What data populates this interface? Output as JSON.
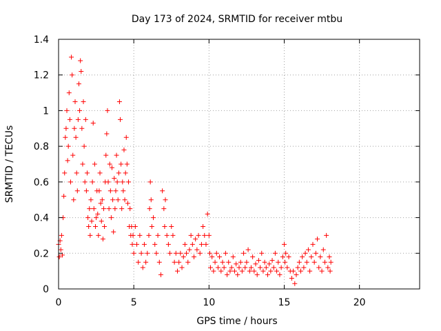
{
  "chart_data": {
    "type": "scatter",
    "title": "Day 173 of 2024, SRMTID for receiver mtbu",
    "xlabel": "GPS time / hours",
    "ylabel": "SRMTID / TECUs",
    "xlim": [
      0,
      24
    ],
    "ylim": [
      0,
      1.4
    ],
    "xticks": [
      0,
      5,
      10,
      15,
      20
    ],
    "xtick_labels": [
      "0",
      "5",
      "10",
      "15",
      "20"
    ],
    "yticks": [
      0,
      0.2,
      0.4,
      0.6,
      0.8,
      1.0,
      1.2,
      1.4
    ],
    "ytick_labels": [
      "0",
      "0.2",
      "0.4",
      "0.6",
      "0.8",
      "1",
      "1.2",
      "1.4"
    ],
    "grid": true,
    "marker": "+",
    "marker_color": "#ff0000",
    "series": [
      {
        "name": "mtbu",
        "points": [
          [
            0.0,
            0.25
          ],
          [
            0.05,
            0.18
          ],
          [
            0.1,
            0.27
          ],
          [
            0.15,
            0.22
          ],
          [
            0.2,
            0.3
          ],
          [
            0.25,
            0.19
          ],
          [
            0.3,
            0.4
          ],
          [
            0.35,
            0.52
          ],
          [
            0.4,
            0.65
          ],
          [
            0.45,
            0.85
          ],
          [
            0.5,
            0.9
          ],
          [
            0.55,
            1.0
          ],
          [
            0.6,
            0.72
          ],
          [
            0.65,
            0.8
          ],
          [
            0.7,
            1.1
          ],
          [
            0.75,
            0.95
          ],
          [
            0.8,
            0.6
          ],
          [
            0.85,
            1.3
          ],
          [
            0.9,
            1.2
          ],
          [
            0.95,
            0.75
          ],
          [
            1.0,
            0.5
          ],
          [
            1.05,
            0.9
          ],
          [
            1.1,
            1.05
          ],
          [
            1.15,
            0.85
          ],
          [
            1.2,
            0.65
          ],
          [
            1.25,
            0.55
          ],
          [
            1.3,
            0.95
          ],
          [
            1.35,
            1.15
          ],
          [
            1.4,
            1.0
          ],
          [
            1.45,
            1.28
          ],
          [
            1.5,
            1.22
          ],
          [
            1.55,
            0.9
          ],
          [
            1.6,
            0.7
          ],
          [
            1.65,
            1.05
          ],
          [
            1.7,
            0.8
          ],
          [
            1.75,
            0.6
          ],
          [
            1.8,
            0.95
          ],
          [
            1.85,
            0.55
          ],
          [
            1.9,
            0.65
          ],
          [
            1.95,
            0.4
          ],
          [
            2.0,
            0.35
          ],
          [
            2.05,
            0.45
          ],
          [
            2.1,
            0.3
          ],
          [
            2.15,
            0.5
          ],
          [
            2.2,
            0.38
          ],
          [
            2.25,
            0.6
          ],
          [
            2.3,
            0.93
          ],
          [
            2.35,
            0.45
          ],
          [
            2.4,
            0.7
          ],
          [
            2.45,
            0.35
          ],
          [
            2.5,
            0.4
          ],
          [
            2.55,
            0.55
          ],
          [
            2.6,
            0.42
          ],
          [
            2.65,
            0.3
          ],
          [
            2.7,
            0.55
          ],
          [
            2.75,
            0.65
          ],
          [
            2.8,
            0.48
          ],
          [
            2.85,
            0.38
          ],
          [
            2.9,
            0.5
          ],
          [
            2.95,
            0.28
          ],
          [
            3.0,
            0.45
          ],
          [
            3.05,
            0.35
          ],
          [
            3.1,
            0.6
          ],
          [
            3.15,
            0.75
          ],
          [
            3.2,
            0.87
          ],
          [
            3.25,
            1.0
          ],
          [
            3.3,
            0.6
          ],
          [
            3.35,
            0.45
          ],
          [
            3.4,
            0.7
          ],
          [
            3.45,
            0.55
          ],
          [
            3.5,
            0.4
          ],
          [
            3.55,
            0.68
          ],
          [
            3.6,
            0.5
          ],
          [
            3.65,
            0.32
          ],
          [
            3.7,
            0.62
          ],
          [
            3.75,
            0.45
          ],
          [
            3.8,
            0.55
          ],
          [
            3.85,
            0.75
          ],
          [
            3.9,
            0.6
          ],
          [
            3.95,
            0.5
          ],
          [
            4.0,
            0.65
          ],
          [
            4.05,
            1.05
          ],
          [
            4.1,
            0.95
          ],
          [
            4.15,
            0.7
          ],
          [
            4.2,
            0.45
          ],
          [
            4.25,
            0.6
          ],
          [
            4.3,
            0.55
          ],
          [
            4.35,
            0.78
          ],
          [
            4.4,
            0.5
          ],
          [
            4.45,
            0.65
          ],
          [
            4.5,
            0.85
          ],
          [
            4.55,
            0.7
          ],
          [
            4.6,
            0.48
          ],
          [
            4.65,
            0.6
          ],
          [
            4.7,
            0.35
          ],
          [
            4.75,
            0.45
          ],
          [
            4.8,
            0.3
          ],
          [
            4.85,
            0.35
          ],
          [
            4.9,
            0.25
          ],
          [
            4.95,
            0.3
          ],
          [
            5.0,
            0.2
          ],
          [
            5.1,
            0.35
          ],
          [
            5.2,
            0.25
          ],
          [
            5.3,
            0.15
          ],
          [
            5.4,
            0.3
          ],
          [
            5.5,
            0.2
          ],
          [
            5.6,
            0.12
          ],
          [
            5.7,
            0.25
          ],
          [
            5.8,
            0.15
          ],
          [
            5.9,
            0.2
          ],
          [
            6.0,
            0.3
          ],
          [
            6.05,
            0.45
          ],
          [
            6.1,
            0.6
          ],
          [
            6.15,
            0.5
          ],
          [
            6.2,
            0.35
          ],
          [
            6.3,
            0.4
          ],
          [
            6.4,
            0.25
          ],
          [
            6.5,
            0.2
          ],
          [
            6.6,
            0.3
          ],
          [
            6.7,
            0.15
          ],
          [
            6.8,
            0.08
          ],
          [
            6.9,
            0.55
          ],
          [
            7.0,
            0.45
          ],
          [
            7.05,
            0.35
          ],
          [
            7.1,
            0.5
          ],
          [
            7.2,
            0.3
          ],
          [
            7.3,
            0.25
          ],
          [
            7.4,
            0.2
          ],
          [
            7.5,
            0.35
          ],
          [
            7.6,
            0.3
          ],
          [
            7.7,
            0.15
          ],
          [
            7.8,
            0.2
          ],
          [
            7.9,
            0.1
          ],
          [
            8.0,
            0.15
          ],
          [
            8.1,
            0.2
          ],
          [
            8.2,
            0.12
          ],
          [
            8.3,
            0.18
          ],
          [
            8.4,
            0.25
          ],
          [
            8.5,
            0.2
          ],
          [
            8.6,
            0.15
          ],
          [
            8.7,
            0.22
          ],
          [
            8.8,
            0.3
          ],
          [
            8.9,
            0.25
          ],
          [
            9.0,
            0.18
          ],
          [
            9.1,
            0.28
          ],
          [
            9.2,
            0.22
          ],
          [
            9.3,
            0.3
          ],
          [
            9.4,
            0.2
          ],
          [
            9.5,
            0.25
          ],
          [
            9.6,
            0.35
          ],
          [
            9.7,
            0.3
          ],
          [
            9.8,
            0.25
          ],
          [
            9.9,
            0.42
          ],
          [
            10.0,
            0.3
          ],
          [
            10.05,
            0.2
          ],
          [
            10.1,
            0.12
          ],
          [
            10.2,
            0.18
          ],
          [
            10.3,
            0.1
          ],
          [
            10.4,
            0.15
          ],
          [
            10.5,
            0.2
          ],
          [
            10.6,
            0.12
          ],
          [
            10.7,
            0.18
          ],
          [
            10.8,
            0.1
          ],
          [
            10.9,
            0.15
          ],
          [
            11.0,
            0.12
          ],
          [
            11.1,
            0.2
          ],
          [
            11.2,
            0.08
          ],
          [
            11.3,
            0.15
          ],
          [
            11.4,
            0.1
          ],
          [
            11.5,
            0.12
          ],
          [
            11.6,
            0.18
          ],
          [
            11.7,
            0.1
          ],
          [
            11.8,
            0.14
          ],
          [
            11.9,
            0.08
          ],
          [
            12.0,
            0.12
          ],
          [
            12.1,
            0.15
          ],
          [
            12.2,
            0.1
          ],
          [
            12.3,
            0.2
          ],
          [
            12.4,
            0.12
          ],
          [
            12.5,
            0.15
          ],
          [
            12.6,
            0.22
          ],
          [
            12.7,
            0.1
          ],
          [
            12.8,
            0.12
          ],
          [
            12.9,
            0.18
          ],
          [
            13.0,
            0.1
          ],
          [
            13.1,
            0.14
          ],
          [
            13.2,
            0.08
          ],
          [
            13.3,
            0.16
          ],
          [
            13.4,
            0.12
          ],
          [
            13.5,
            0.2
          ],
          [
            13.6,
            0.1
          ],
          [
            13.7,
            0.15
          ],
          [
            13.8,
            0.12
          ],
          [
            13.9,
            0.08
          ],
          [
            14.0,
            0.14
          ],
          [
            14.1,
            0.1
          ],
          [
            14.2,
            0.16
          ],
          [
            14.3,
            0.12
          ],
          [
            14.4,
            0.2
          ],
          [
            14.5,
            0.1
          ],
          [
            14.6,
            0.15
          ],
          [
            14.7,
            0.08
          ],
          [
            14.8,
            0.12
          ],
          [
            14.9,
            0.18
          ],
          [
            15.0,
            0.25
          ],
          [
            15.05,
            0.15
          ],
          [
            15.1,
            0.2
          ],
          [
            15.2,
            0.12
          ],
          [
            15.3,
            0.18
          ],
          [
            15.4,
            0.1
          ],
          [
            15.5,
            0.06
          ],
          [
            15.6,
            0.1
          ],
          [
            15.7,
            0.03
          ],
          [
            15.8,
            0.08
          ],
          [
            15.9,
            0.12
          ],
          [
            16.0,
            0.15
          ],
          [
            16.1,
            0.1
          ],
          [
            16.2,
            0.18
          ],
          [
            16.3,
            0.12
          ],
          [
            16.4,
            0.2
          ],
          [
            16.5,
            0.15
          ],
          [
            16.6,
            0.22
          ],
          [
            16.7,
            0.1
          ],
          [
            16.8,
            0.18
          ],
          [
            16.9,
            0.25
          ],
          [
            17.0,
            0.15
          ],
          [
            17.1,
            0.2
          ],
          [
            17.2,
            0.28
          ],
          [
            17.3,
            0.12
          ],
          [
            17.4,
            0.18
          ],
          [
            17.5,
            0.1
          ],
          [
            17.6,
            0.22
          ],
          [
            17.7,
            0.15
          ],
          [
            17.8,
            0.3
          ],
          [
            17.9,
            0.12
          ],
          [
            18.0,
            0.18
          ],
          [
            18.05,
            0.1
          ],
          [
            18.1,
            0.15
          ]
        ]
      }
    ]
  }
}
